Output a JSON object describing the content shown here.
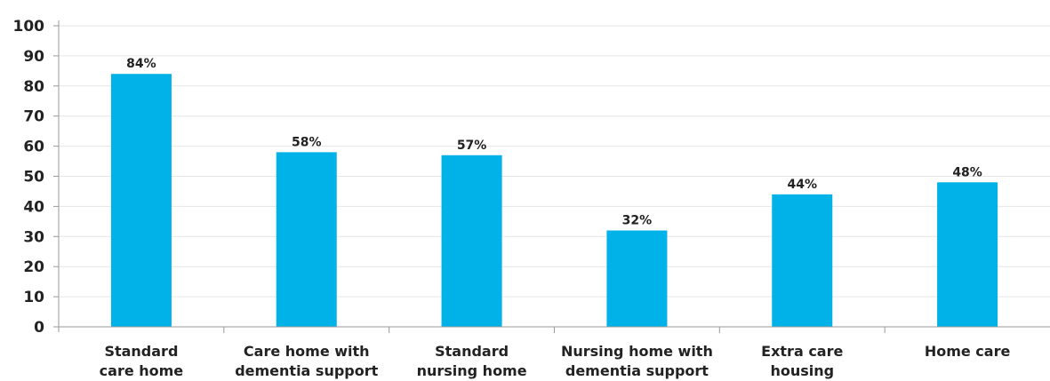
{
  "chart_data": {
    "type": "bar",
    "categories": [
      [
        "Standard",
        "care home"
      ],
      [
        "Care home with",
        "dementia support"
      ],
      [
        "Standard",
        "nursing home"
      ],
      [
        "Nursing home with",
        "dementia support"
      ],
      [
        "Extra care",
        "housing"
      ],
      [
        "Home care"
      ]
    ],
    "values": [
      84,
      58,
      57,
      32,
      44,
      48
    ],
    "data_labels": [
      "84%",
      "58%",
      "57%",
      "32%",
      "44%",
      "48%"
    ],
    "yticks": [
      "0",
      "10",
      "20",
      "30",
      "40",
      "50",
      "60",
      "70",
      "80",
      "90",
      "100"
    ],
    "ylim": [
      0,
      100
    ],
    "grid": true,
    "bar_color": "#00b2e8"
  }
}
